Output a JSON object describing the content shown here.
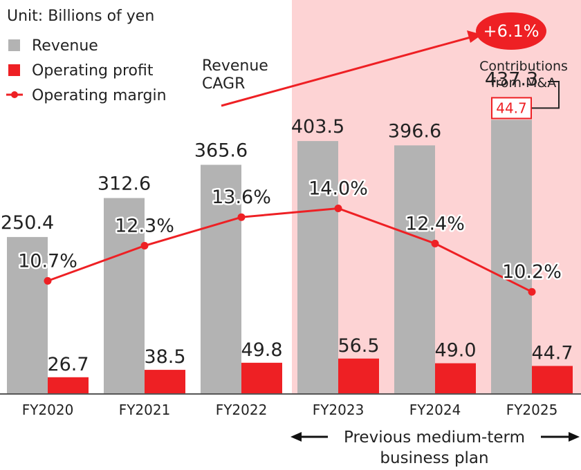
{
  "chart_data": {
    "type": "bar",
    "unit_label": "Unit: Billions of yen",
    "categories": [
      "FY2020",
      "FY2021",
      "FY2022",
      "FY2023",
      "FY2024",
      "FY2025"
    ],
    "series": [
      {
        "name": "Revenue",
        "type": "bar",
        "color": "#b3b3b3",
        "values": [
          250.4,
          312.6,
          365.6,
          403.5,
          396.6,
          437.3
        ],
        "labels": [
          "250.4",
          "312.6",
          "365.6",
          "403.5",
          "396.6",
          "437.3"
        ]
      },
      {
        "name": "Operating profit",
        "type": "bar",
        "color": "#ee2024",
        "values": [
          26.7,
          38.5,
          49.8,
          56.5,
          49.0,
          44.7
        ],
        "labels": [
          "26.7",
          "38.5",
          "49.8",
          "56.5",
          "49.0",
          "44.7"
        ]
      },
      {
        "name": "Operating margin",
        "type": "line",
        "color": "#ee2024",
        "values": [
          10.7,
          12.3,
          13.6,
          14.0,
          12.4,
          10.2
        ],
        "labels": [
          "10.7%",
          "12.3%",
          "13.6%",
          "14.0%",
          "12.4%",
          "10.2%"
        ]
      }
    ],
    "legend_position": "top-left",
    "highlight": {
      "from": "FY2023",
      "to": "FY2025",
      "color": "#fdd3d4",
      "label_line1": "Previous medium-term",
      "label_line2": "business plan"
    },
    "cagr": {
      "label_line1": "Revenue",
      "label_line2": "CAGR",
      "value": "+6.1%"
    },
    "mna": {
      "label_line1": "Contributions",
      "label_line2": "from M&A",
      "category": "FY2025",
      "value": 44.7,
      "label": "44.7"
    }
  }
}
